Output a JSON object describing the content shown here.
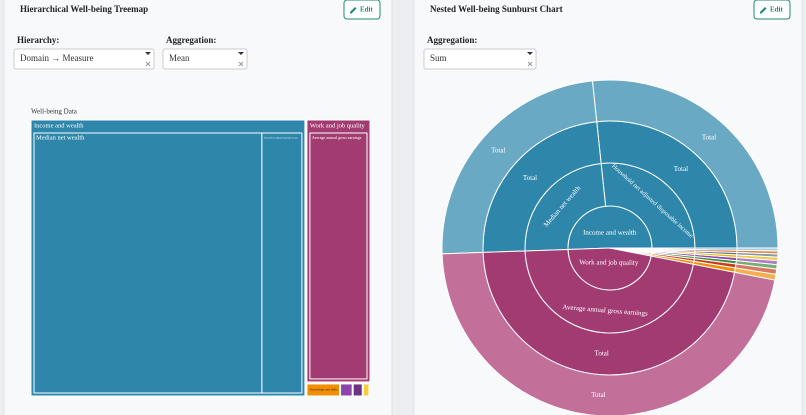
{
  "left_panel": {
    "title": "Hierarchical Well-being Treemap",
    "edit_button": "Edit",
    "hierarchy_label": "Hierarchy:",
    "hierarchy_value": "Domain → Measure",
    "aggregation_label": "Aggregation:",
    "aggregation_value": "Mean"
  },
  "right_panel": {
    "title": "Nested Well-being Sunburst Chart",
    "edit_button": "Edit",
    "aggregation_label": "Aggregation:",
    "aggregation_value": "Sum"
  },
  "treemap": {
    "root": "Well-being Data",
    "domains": [
      {
        "name": "Income and wealth",
        "color": "#2e86ab",
        "children": [
          {
            "name": "Median net wealth",
            "value": 63.8
          },
          {
            "name": "Household net adjusted disposable income",
            "value": 11.2
          }
        ]
      },
      {
        "name": "Work and job quality",
        "color": "#a23b72",
        "children": [
          {
            "name": "Average annual gross earnings",
            "value": 16.4
          }
        ]
      },
      {
        "name": "Knowledge and skills",
        "color": "#f18f01",
        "children": [
          {
            "name": null,
            "value": 0.4
          }
        ]
      },
      {
        "name": null,
        "color": "#8e44ad",
        "children": [
          {
            "name": null,
            "value": 0.15
          }
        ]
      },
      {
        "name": null,
        "color": "#6c3483",
        "children": [
          {
            "name": null,
            "value": 0.12
          }
        ]
      },
      {
        "name": null,
        "color": "#f4d03f",
        "children": [
          {
            "name": null,
            "value": 0.08
          }
        ]
      }
    ]
  },
  "sunburst": {
    "domains": [
      {
        "name": "Income and wealth",
        "color": "#2e86ab",
        "outer_color": "#6aa9c4",
        "children": [
          {
            "name": "Household net adjusted disposable income",
            "value": 96,
            "sub_label": "Total",
            "leaf_label": "Total"
          },
          {
            "name": "Median net wealth",
            "value": 86,
            "sub_label": "Total",
            "leaf_label": "Total"
          }
        ]
      },
      {
        "name": "Work and job quality",
        "color": "#a23b72",
        "outer_color": "#c2709a",
        "children": [
          {
            "name": "Average annual gross earnings",
            "value": 167,
            "sub_label": "Total",
            "leaf_label": "Total"
          }
        ]
      },
      {
        "name": null,
        "color": "#f18f01",
        "outer_color": "#f5b04d",
        "children": [
          {
            "name": null,
            "value": 2
          }
        ]
      },
      {
        "name": null,
        "color": "#c73e1d",
        "outer_color": "#d97760",
        "children": [
          {
            "name": null,
            "value": 1.8
          }
        ]
      },
      {
        "name": null,
        "color": "#3b8b3b",
        "outer_color": "#76ad76",
        "children": [
          {
            "name": null,
            "value": 1.5
          }
        ]
      },
      {
        "name": null,
        "color": "#8e44ad",
        "outer_color": "#b07cc6",
        "children": [
          {
            "name": null,
            "value": 1.4
          }
        ]
      },
      {
        "name": null,
        "color": "#e6b800",
        "outer_color": "#eecd4d",
        "children": [
          {
            "name": null,
            "value": 1.2
          }
        ]
      },
      {
        "name": null,
        "color": "#5d6d7e",
        "outer_color": "#8d99a5",
        "children": [
          {
            "name": null,
            "value": 1.1
          }
        ]
      },
      {
        "name": null,
        "color": "#d35400",
        "outer_color": "#e08746",
        "children": [
          {
            "name": null,
            "value": 1
          }
        ]
      },
      {
        "name": null,
        "color": "#7fb3d5",
        "outer_color": "#a6cae2",
        "children": [
          {
            "name": null,
            "value": 1
          }
        ]
      }
    ]
  }
}
